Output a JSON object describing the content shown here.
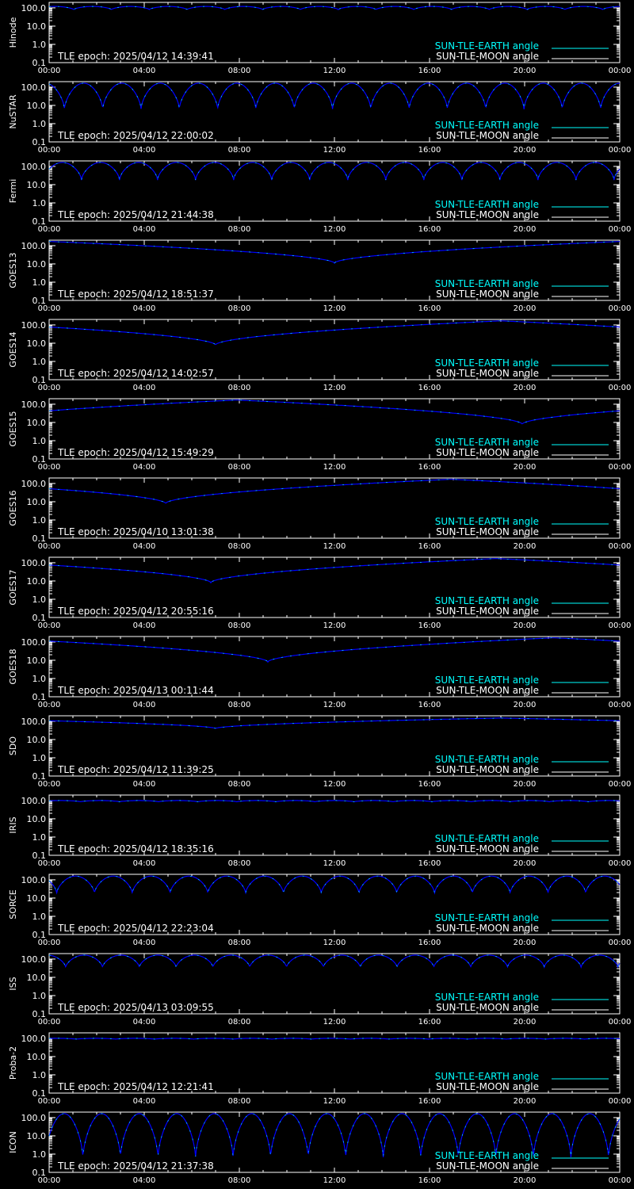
{
  "colors": {
    "background": "#000000",
    "frame": "#ffffff",
    "sun_tle_earth": "#00ffff",
    "sun_tle_moon": "#ffffff",
    "curve": "#0000ff",
    "curve_peak": "#00ffff"
  },
  "legend": {
    "earth_label": "SUN-TLE-EARTH angle",
    "moon_label": "SUN-TLE-MOON angle"
  },
  "epoch_prefix": "TLE epoch: ",
  "chart_data": [
    {
      "type": "line",
      "ylabel": "Hinode",
      "epoch": "2025/04/12 14:39:41",
      "x_ticks": [
        "00:00",
        "04:00",
        "08:00",
        "12:00",
        "16:00",
        "20:00",
        "00:00"
      ],
      "y_ticks": [
        "100.0",
        "10.0",
        "1.0",
        "0.1"
      ],
      "y_scale": "log",
      "ylim": [
        0.1,
        200
      ],
      "curve": {
        "kind": "periodic",
        "orbits": 15.1,
        "phase": 0.35,
        "min": 80,
        "max": 120
      }
    },
    {
      "type": "line",
      "ylabel": "NuSTAR",
      "epoch": "2025/04/12 22:00:02",
      "x_ticks": [
        "00:00",
        "04:00",
        "08:00",
        "12:00",
        "16:00",
        "20:00",
        "00:00"
      ],
      "y_ticks": [
        "100.0",
        "10.0",
        "1.0",
        "0.1"
      ],
      "y_scale": "log",
      "ylim": [
        0.1,
        200
      ],
      "curve": {
        "kind": "periodic",
        "orbits": 14.9,
        "phase": 0.6,
        "min": 6,
        "max": 165
      }
    },
    {
      "type": "line",
      "ylabel": "Fermi",
      "epoch": "2025/04/12 21:44:38",
      "x_ticks": [
        "00:00",
        "04:00",
        "08:00",
        "12:00",
        "16:00",
        "20:00",
        "00:00"
      ],
      "y_ticks": [
        "100.0",
        "10.0",
        "1.0",
        "0.1"
      ],
      "y_scale": "log",
      "ylim": [
        0.1,
        200
      ],
      "curve": {
        "kind": "periodic",
        "orbits": 15.0,
        "phase": 0.15,
        "min": 18,
        "max": 165
      }
    },
    {
      "type": "line",
      "ylabel": "GOES13",
      "epoch": "2025/04/12 18:51:37",
      "x_ticks": [
        "00:00",
        "04:00",
        "08:00",
        "12:00",
        "16:00",
        "20:00",
        "00:00"
      ],
      "y_ticks": [
        "100.0",
        "10.0",
        "1.0",
        "0.1"
      ],
      "y_scale": "log",
      "ylim": [
        0.1,
        200
      ],
      "curve": {
        "kind": "geo",
        "min_hour": 12.0,
        "min": 11,
        "max": 170
      }
    },
    {
      "type": "line",
      "ylabel": "GOES14",
      "epoch": "2025/04/12 14:02:57",
      "x_ticks": [
        "00:00",
        "04:00",
        "08:00",
        "12:00",
        "16:00",
        "20:00",
        "00:00"
      ],
      "y_ticks": [
        "100.0",
        "10.0",
        "1.0",
        "0.1"
      ],
      "y_scale": "log",
      "ylim": [
        0.1,
        200
      ],
      "curve": {
        "kind": "geo",
        "min_hour": 7.0,
        "min": 8,
        "max": 168
      }
    },
    {
      "type": "line",
      "ylabel": "GOES15",
      "epoch": "2025/04/12 15:49:29",
      "x_ticks": [
        "00:00",
        "04:00",
        "08:00",
        "12:00",
        "16:00",
        "20:00",
        "00:00"
      ],
      "y_ticks": [
        "100.0",
        "10.0",
        "1.0",
        "0.1"
      ],
      "y_scale": "log",
      "ylim": [
        0.1,
        200
      ],
      "curve": {
        "kind": "geo",
        "min_hour": 19.9,
        "min": 8,
        "max": 170
      }
    },
    {
      "type": "line",
      "ylabel": "GOES16",
      "epoch": "2025/04/10 13:01:38",
      "x_ticks": [
        "00:00",
        "04:00",
        "08:00",
        "12:00",
        "16:00",
        "20:00",
        "00:00"
      ],
      "y_ticks": [
        "100.0",
        "10.0",
        "1.0",
        "0.1"
      ],
      "y_scale": "log",
      "ylim": [
        0.1,
        200
      ],
      "curve": {
        "kind": "geo",
        "min_hour": 4.9,
        "min": 8,
        "max": 170
      }
    },
    {
      "type": "line",
      "ylabel": "GOES17",
      "epoch": "2025/04/12 20:55:16",
      "x_ticks": [
        "00:00",
        "04:00",
        "08:00",
        "12:00",
        "16:00",
        "20:00",
        "00:00"
      ],
      "y_ticks": [
        "100.0",
        "10.0",
        "1.0",
        "0.1"
      ],
      "y_scale": "log",
      "ylim": [
        0.1,
        200
      ],
      "curve": {
        "kind": "geo",
        "min_hour": 6.8,
        "min": 8,
        "max": 170
      }
    },
    {
      "type": "line",
      "ylabel": "GOES18",
      "epoch": "2025/04/13 00:11:44",
      "x_ticks": [
        "00:00",
        "04:00",
        "08:00",
        "12:00",
        "16:00",
        "20:00",
        "00:00"
      ],
      "y_ticks": [
        "100.0",
        "10.0",
        "1.0",
        "0.1"
      ],
      "y_scale": "log",
      "ylim": [
        0.1,
        200
      ],
      "curve": {
        "kind": "geo",
        "min_hour": 9.2,
        "min": 8,
        "max": 170
      }
    },
    {
      "type": "line",
      "ylabel": "SDO",
      "epoch": "2025/04/12 11:39:25",
      "x_ticks": [
        "00:00",
        "04:00",
        "08:00",
        "12:00",
        "16:00",
        "20:00",
        "00:00"
      ],
      "y_ticks": [
        "100.0",
        "10.0",
        "1.0",
        "0.1"
      ],
      "y_scale": "log",
      "ylim": [
        0.1,
        200
      ],
      "curve": {
        "kind": "geo",
        "min_hour": 7.0,
        "min": 40,
        "max": 150
      }
    },
    {
      "type": "line",
      "ylabel": "IRIS",
      "epoch": "2025/04/12 18:35:16",
      "x_ticks": [
        "00:00",
        "04:00",
        "08:00",
        "12:00",
        "16:00",
        "20:00",
        "00:00"
      ],
      "y_ticks": [
        "100.0",
        "10.0",
        "1.0",
        "0.1"
      ],
      "y_scale": "log",
      "ylim": [
        0.1,
        200
      ],
      "curve": {
        "kind": "periodic",
        "orbits": 14.6,
        "phase": 0.2,
        "min": 85,
        "max": 100
      }
    },
    {
      "type": "line",
      "ylabel": "SORCE",
      "epoch": "2025/04/12 22:23:04",
      "x_ticks": [
        "00:00",
        "04:00",
        "08:00",
        "12:00",
        "16:00",
        "20:00",
        "00:00"
      ],
      "y_ticks": [
        "100.0",
        "10.0",
        "1.0",
        "0.1"
      ],
      "y_scale": "log",
      "ylim": [
        0.1,
        200
      ],
      "curve": {
        "kind": "periodic",
        "orbits": 15.1,
        "phase": 0.8,
        "min": 18,
        "max": 160
      }
    },
    {
      "type": "line",
      "ylabel": "ISS",
      "epoch": "2025/04/13 03:09:55",
      "x_ticks": [
        "00:00",
        "04:00",
        "08:00",
        "12:00",
        "16:00",
        "20:00",
        "00:00"
      ],
      "y_ticks": [
        "100.0",
        "10.0",
        "1.0",
        "0.1"
      ],
      "y_scale": "log",
      "ylim": [
        0.1,
        200
      ],
      "curve": {
        "kind": "periodic",
        "orbits": 15.5,
        "phase": 0.55,
        "min": 35,
        "max": 165
      }
    },
    {
      "type": "line",
      "ylabel": "Proba-2",
      "epoch": "2025/04/12 12:21:41",
      "x_ticks": [
        "00:00",
        "04:00",
        "08:00",
        "12:00",
        "16:00",
        "20:00",
        "00:00"
      ],
      "y_ticks": [
        "100.0",
        "10.0",
        "1.0",
        "0.1"
      ],
      "y_scale": "log",
      "ylim": [
        0.1,
        200
      ],
      "curve": {
        "kind": "periodic",
        "orbits": 14.6,
        "phase": 0.3,
        "min": 90,
        "max": 100
      }
    },
    {
      "type": "line",
      "ylabel": "ICON",
      "epoch": "2025/04/12 21:37:38",
      "x_ticks": [
        "00:00",
        "04:00",
        "08:00",
        "12:00",
        "16:00",
        "20:00",
        "00:00"
      ],
      "y_ticks": [
        "100.0",
        "10.0",
        "1.0",
        "0.1"
      ],
      "y_scale": "log",
      "ylim": [
        0.1,
        200
      ],
      "curve": {
        "kind": "periodic",
        "orbits": 15.2,
        "phase": 0.1,
        "min": 0.6,
        "max": 165
      }
    }
  ]
}
